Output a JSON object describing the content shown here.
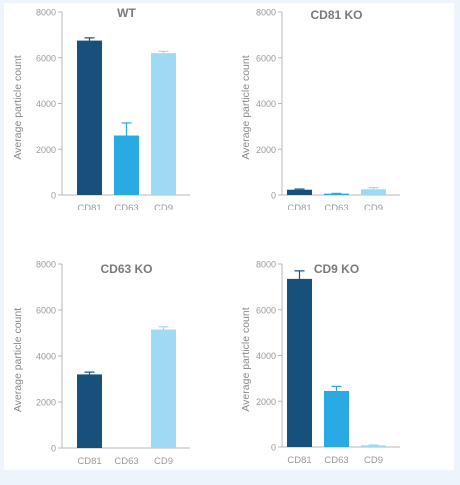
{
  "colors": {
    "CD81": "#17507a",
    "CD63": "#29aae2",
    "CD9": "#9fd9f4",
    "axis": "#b8b8b8",
    "tick_text": "#9a9a9a",
    "label_text": "#8a8a8a",
    "title_text": "#7a7a7a"
  },
  "chart_data": [
    {
      "type": "bar",
      "title": "WT",
      "ylabel": "Average particle count",
      "ylim": [
        0,
        8000
      ],
      "yticks": [
        "0",
        "2000",
        "4000",
        "6000",
        "8000"
      ],
      "categories": [
        "CD81",
        "CD63",
        "CD9"
      ],
      "values": [
        6750,
        2600,
        6200
      ],
      "errors": [
        120,
        550,
        80
      ]
    },
    {
      "type": "bar",
      "title": "CD81 KO",
      "ylabel": "Average particle count",
      "ylim": [
        0,
        8000
      ],
      "yticks": [
        "0",
        "2000",
        "4000",
        "6000",
        "8000"
      ],
      "categories": [
        "CD81",
        "CD63",
        "CD9"
      ],
      "values": [
        230,
        60,
        250
      ],
      "errors": [
        30,
        10,
        70
      ]
    },
    {
      "type": "bar",
      "title": "CD63 KO",
      "ylabel": "Average particle count",
      "ylim": [
        0,
        8000
      ],
      "yticks": [
        "0",
        "2000",
        "4000",
        "6000",
        "8000"
      ],
      "categories": [
        "CD81",
        "CD63",
        "CD9"
      ],
      "values": [
        3200,
        0,
        5150
      ],
      "errors": [
        100,
        0,
        120
      ]
    },
    {
      "type": "bar",
      "title": "CD9 KO",
      "ylabel": "Average particle count",
      "ylim": [
        0,
        8000
      ],
      "yticks": [
        "0",
        "2000",
        "4000",
        "6000",
        "8000"
      ],
      "categories": [
        "CD81",
        "CD63",
        "CD9"
      ],
      "values": [
        7350,
        2450,
        70
      ],
      "errors": [
        350,
        200,
        20
      ]
    }
  ]
}
